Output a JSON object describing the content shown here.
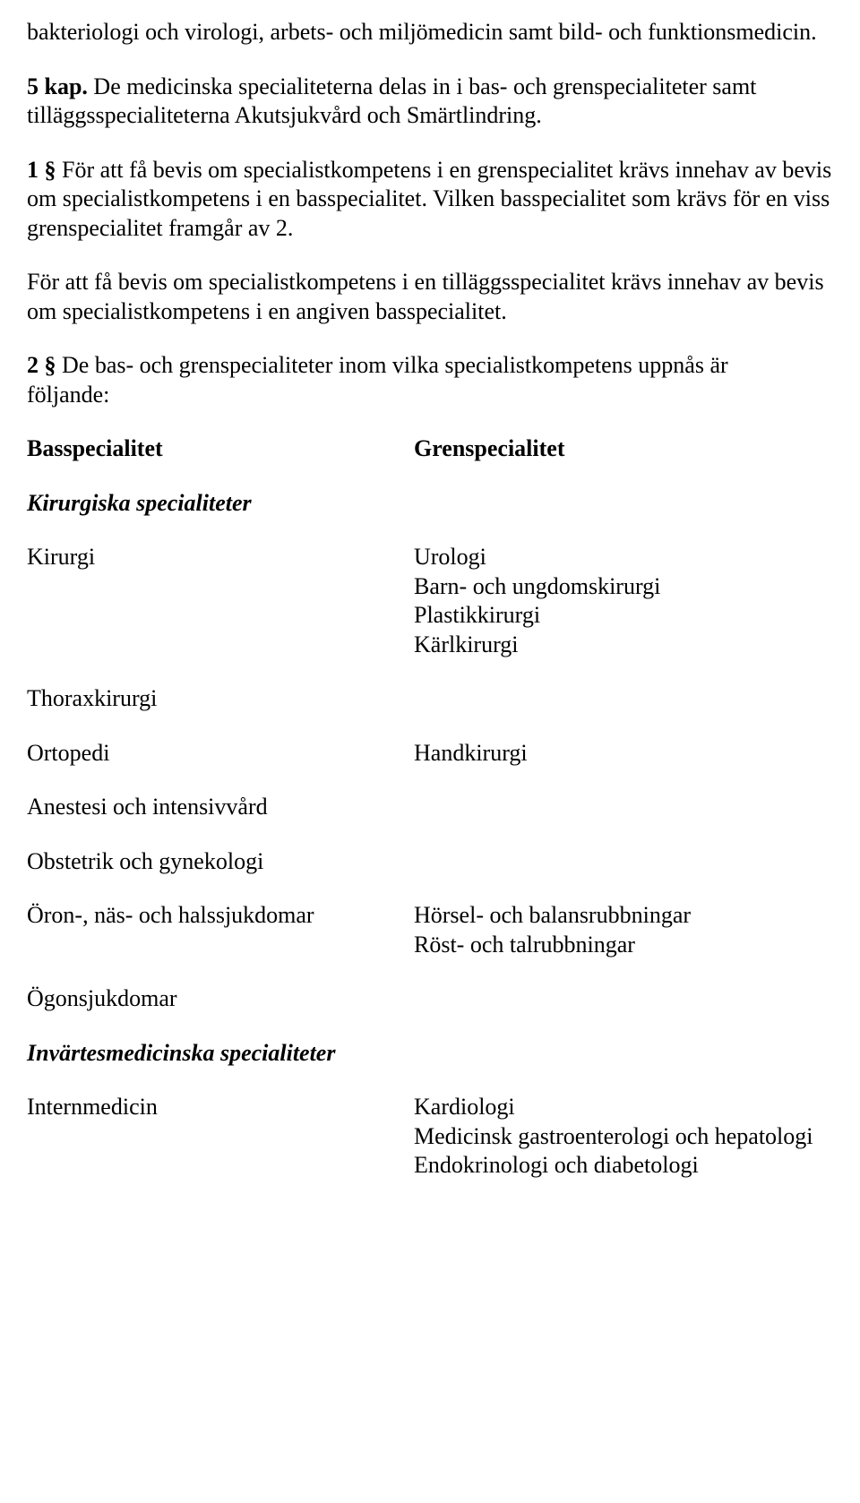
{
  "intro": {
    "p1": "bakteriologi och virologi, arbets- och miljömedicin samt bild- och funktionsmedicin.",
    "p2_lead": "5 kap. ",
    "p2_rest": "De medicinska specialiteterna delas in i bas- och grenspecialiteter samt tilläggsspecialiteterna Akutsjukvård och Smärtlindring.",
    "p3_lead": "1 §",
    "p3_rest": " För att få bevis om specialistkompetens i en grenspecialitet krävs innehav av bevis om specialistkompetens i en basspecialitet. Vilken basspecialitet som krävs för en viss grenspecialitet framgår av 2.",
    "p4": "För att få bevis om specialistkompetens i en tilläggsspecialitet krävs innehav av bevis om specialistkompetens i en angiven basspecialitet.",
    "p5_lead": "2 §",
    "p5_rest": " De bas- och grenspecialiteter inom vilka specialistkompetens uppnås är ",
    "p5_trail": "följande:"
  },
  "colheaders": {
    "left": "Basspecialitet",
    "right": "Grenspecialitet"
  },
  "sectionA": {
    "heading": "Kirurgiska specialiteter",
    "rows": [
      {
        "left": "Kirurgi",
        "right": [
          "Urologi",
          "Barn- och ungdomskirurgi",
          "Plastikkirurgi",
          "Kärlkirurgi"
        ]
      },
      {
        "left": "Thoraxkirurgi",
        "right": []
      },
      {
        "left": "Ortopedi",
        "right": [
          "Handkirurgi"
        ]
      },
      {
        "left": "Anestesi och intensivvård",
        "right": []
      },
      {
        "left": "Obstetrik och gynekologi",
        "right": []
      },
      {
        "left": "Öron-, näs- och halssjukdomar",
        "right": [
          "Hörsel- och balansrubbningar",
          "Röst- och talrubbningar"
        ]
      },
      {
        "left": "Ögonsjukdomar",
        "right": []
      }
    ]
  },
  "sectionB": {
    "heading": "Invärtesmedicinska specialiteter",
    "rows": [
      {
        "left": "Internmedicin",
        "right": [
          "Kardiologi",
          "Medicinsk gastroenterologi och hepatologi",
          "Endokrinologi och diabetologi"
        ]
      }
    ]
  }
}
